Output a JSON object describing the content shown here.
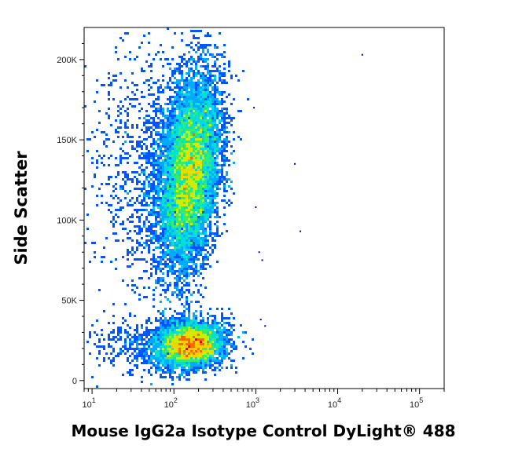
{
  "chart_data": {
    "type": "scatter",
    "style": "flow-cytometry density dot plot",
    "title": "",
    "xlabel": "Mouse IgG2a Isotype Control DyLight® 488",
    "ylabel": "Side Scatter",
    "x_scale": "log",
    "xlim": [
      8,
      200000
    ],
    "ylim": [
      -5000,
      220000
    ],
    "x_ticks": [
      {
        "value": 10,
        "base": "10",
        "exp": "1"
      },
      {
        "value": 100,
        "base": "10",
        "exp": "2"
      },
      {
        "value": 1000,
        "base": "10",
        "exp": "3"
      },
      {
        "value": 10000,
        "base": "10",
        "exp": "4"
      },
      {
        "value": 100000,
        "base": "10",
        "exp": "5"
      }
    ],
    "y_ticks": [
      {
        "value": 0,
        "label": "0"
      },
      {
        "value": 50000,
        "label": "50K"
      },
      {
        "value": 100000,
        "label": "100K"
      },
      {
        "value": 150000,
        "label": "150K"
      },
      {
        "value": 200000,
        "label": "200K"
      }
    ],
    "grid": false,
    "legend": "none",
    "colormap": [
      "#0000cc",
      "#0055ff",
      "#00aaff",
      "#00dddd",
      "#33ee66",
      "#ccee00",
      "#ffcc00",
      "#ff6600",
      "#ee0000"
    ],
    "populations": [
      {
        "name": "upper",
        "x_center": 160,
        "x_sd_decades": 0.17,
        "y_center": 130000,
        "y_sd": 30000,
        "tilt": 0.35,
        "count": 9000,
        "peak_density": 0.95
      },
      {
        "name": "lower",
        "x_center": 160,
        "x_sd_decades": 0.2,
        "y_center": 22000,
        "y_sd": 7000,
        "tilt": 0.1,
        "count": 4500,
        "peak_density": 1.0
      }
    ],
    "outliers": [
      {
        "x": 3000,
        "y": 135000
      },
      {
        "x": 3500,
        "y": 93000
      },
      {
        "x": 20000,
        "y": 203000
      },
      {
        "x": 1000,
        "y": 108000
      },
      {
        "x": 1100,
        "y": 80000
      },
      {
        "x": 1200,
        "y": 75000
      },
      {
        "x": 1150,
        "y": 38000
      },
      {
        "x": 1300,
        "y": 34000
      },
      {
        "x": 950,
        "y": 170000
      }
    ]
  }
}
